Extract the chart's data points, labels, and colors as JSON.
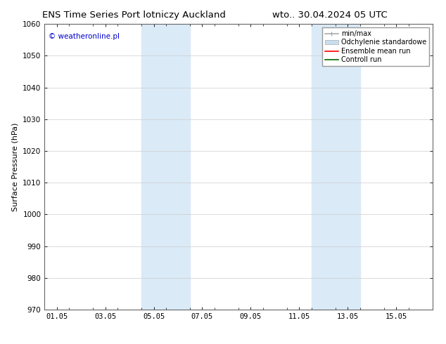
{
  "title_left": "ENS Time Series Port lotniczy Auckland",
  "title_right": "wto.. 30.04.2024 05 UTC",
  "ylabel": "Surface Pressure (hPa)",
  "ylim": [
    970,
    1060
  ],
  "yticks": [
    970,
    980,
    990,
    1000,
    1010,
    1020,
    1030,
    1040,
    1050,
    1060
  ],
  "xtick_labels": [
    "01.05",
    "03.05",
    "05.05",
    "07.05",
    "09.05",
    "11.05",
    "13.05",
    "15.05"
  ],
  "xtick_positions": [
    0,
    2,
    4,
    6,
    8,
    10,
    12,
    14
  ],
  "xlim": [
    -0.5,
    15.5
  ],
  "shaded_bands": [
    {
      "x_start": 3.5,
      "x_end": 5.5
    },
    {
      "x_start": 10.5,
      "x_end": 12.5
    }
  ],
  "shaded_color": "#daeaf7",
  "watermark_text": "© weatheronline.pl",
  "watermark_color": "#0000cc",
  "legend_entries": [
    {
      "label": "min/max",
      "color": "#aaaaaa",
      "lw": 1.2,
      "style": "errorbar"
    },
    {
      "label": "Odchylenie standardowe",
      "color": "#c8dff0",
      "lw": 8,
      "style": "band"
    },
    {
      "label": "Ensemble mean run",
      "color": "#ff0000",
      "lw": 1.2,
      "style": "line"
    },
    {
      "label": "Controll run",
      "color": "#006600",
      "lw": 1.2,
      "style": "line"
    }
  ],
  "bg_color": "#ffffff",
  "grid_color": "#cccccc",
  "title_fontsize": 9.5,
  "tick_fontsize": 7.5,
  "ylabel_fontsize": 8,
  "watermark_fontsize": 7.5,
  "legend_fontsize": 7
}
